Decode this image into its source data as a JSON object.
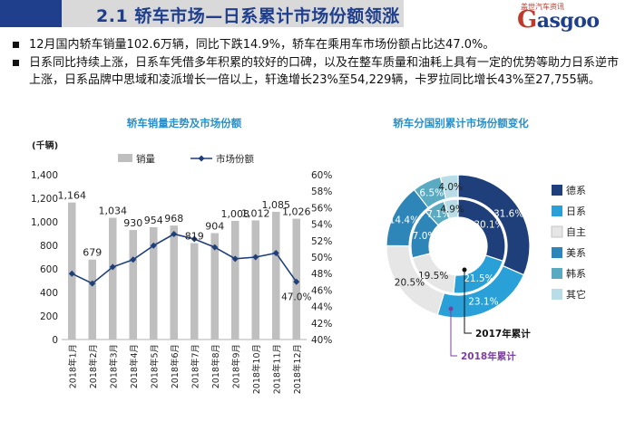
{
  "header": {
    "title": "2.1 轿车市场—日系累计市场份额领涨",
    "logo_small": "盖世汽车资讯",
    "logo_main": "asgoo",
    "logo_letter": "G"
  },
  "bullets": [
    "12月国内轿车销量102.6万辆，同比下跌14.9%，轿车在乘用车市场份额占比达47.0%。",
    "日系同比持续上涨，日系车凭借多年积累的较好的口碑，以及在整车质量和油耗上具有一定的优势等助力日系逆市上涨，日系品牌中思域和凌派增长一倍以上，轩逸增长23%至54,229辆，卡罗拉同比增长43%至27,755辆。"
  ],
  "colors": {
    "bar": "#bfbfbf",
    "line": "#1f3f7a",
    "deXi": "#1f3f7a",
    "riXi": "#2aa0d8",
    "ziZhu": "#e6e6e6",
    "meiXi": "#2e86b8",
    "hanXi": "#5aaac2",
    "qiTa": "#b8dde6"
  },
  "chart_data": [
    {
      "type": "bar",
      "title": "轿车销量走势及市场份额",
      "unit_label": "(千辆)",
      "categories": [
        "2018年1月",
        "2018年2月",
        "2018年3月",
        "2018年4月",
        "2018年5月",
        "2018年6月",
        "2018年7月",
        "2018年8月",
        "2018年9月",
        "2018年10月",
        "2018年11月",
        "2018年12月"
      ],
      "series": [
        {
          "name": "销量",
          "type": "bar",
          "axis": "left",
          "values": [
            1164,
            679,
            1034,
            930,
            954,
            968,
            819,
            904,
            1008,
            1012,
            1085,
            1026
          ],
          "labels": [
            "1,164",
            "679",
            "1,034",
            "930",
            "954",
            "968",
            "819",
            "904",
            "1,008",
            "1,012",
            "1,085",
            "1,026"
          ]
        },
        {
          "name": "市场份额",
          "type": "line",
          "axis": "right",
          "values": [
            48.0,
            46.8,
            48.8,
            49.7,
            51.4,
            52.8,
            52.2,
            51.2,
            49.8,
            50.0,
            50.5,
            47.0
          ],
          "end_label": "47.0%"
        }
      ],
      "ylim_left": [
        0,
        1400
      ],
      "yticks_left": [
        "0",
        "200",
        "400",
        "600",
        "800",
        "1,000",
        "1,200",
        "1,400"
      ],
      "ylim_right": [
        40,
        60
      ],
      "yticks_right": [
        "40%",
        "42%",
        "44%",
        "46%",
        "48%",
        "50%",
        "52%",
        "54%",
        "56%",
        "58%",
        "60%"
      ],
      "legend_position": "top"
    },
    {
      "type": "pie",
      "title": "轿车分国别累计市场份额变化",
      "rings": [
        {
          "name": "2017年累计",
          "values": [
            30.1,
            21.5,
            19.5,
            17.0,
            7.1,
            4.9
          ],
          "labels": [
            "30.1%",
            "21.5%",
            "19.5%",
            "17.0%",
            "7.1%",
            "4.9%"
          ]
        },
        {
          "name": "2018年累计",
          "values": [
            31.6,
            23.1,
            20.5,
            14.4,
            6.5,
            4.0
          ],
          "labels": [
            "31.6%",
            "23.1%",
            "20.5%",
            "14.4%",
            "6.5%",
            "4.0%"
          ]
        }
      ],
      "categories": [
        "德系",
        "日系",
        "自主",
        "美系",
        "韩系",
        "其它"
      ],
      "legend_position": "right"
    }
  ]
}
